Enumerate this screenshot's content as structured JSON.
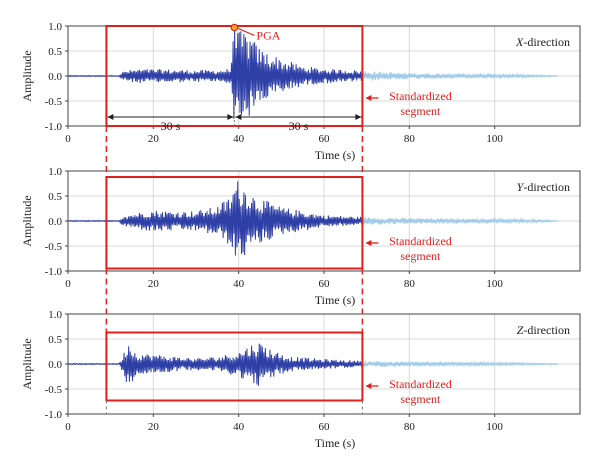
{
  "figure_annotations": {
    "pga_label": "PGA",
    "segment_label_line1": "Standardized",
    "segment_label_line2": "segment",
    "left_span_label": "30 s",
    "right_span_label": "30 s",
    "segment_start_s": 9,
    "pga_time_s": 39,
    "segment_end_s": 69,
    "colors": {
      "signal_in_segment": "#2e3fa6",
      "signal_outside": "#9fcbe8",
      "annotation_red": "#e0201a",
      "grid": "#d9d9d9",
      "pga_marker_fill": "#f4a623"
    }
  },
  "chart_data": [
    {
      "type": "line",
      "direction_label_italic": "X",
      "direction_label_rest": "-direction",
      "xlabel": "Time (s)",
      "ylabel": "Amplitude",
      "xlim": [
        0,
        120
      ],
      "ylim": [
        -1.0,
        1.0
      ],
      "xticks": [
        0,
        20,
        40,
        60,
        80,
        100
      ],
      "yticks": [
        -1.0,
        -0.5,
        0.0,
        0.5,
        1.0
      ],
      "grid": true,
      "pga": {
        "t": 39,
        "value": 0.97
      },
      "envelope": [
        [
          0,
          0.01
        ],
        [
          12,
          0.01
        ],
        [
          13,
          0.1
        ],
        [
          16,
          0.14
        ],
        [
          20,
          0.14
        ],
        [
          25,
          0.13
        ],
        [
          30,
          0.12
        ],
        [
          35,
          0.12
        ],
        [
          38,
          0.15
        ],
        [
          39,
          0.97
        ],
        [
          40,
          0.9
        ],
        [
          42,
          0.9
        ],
        [
          45,
          0.55
        ],
        [
          50,
          0.35
        ],
        [
          55,
          0.2
        ],
        [
          60,
          0.15
        ],
        [
          65,
          0.13
        ],
        [
          70,
          0.1
        ],
        [
          80,
          0.06
        ],
        [
          90,
          0.05
        ],
        [
          100,
          0.04
        ],
        [
          110,
          0.02
        ],
        [
          115,
          0.01
        ]
      ],
      "segment_box": {
        "t_start": 9,
        "t_end": 69,
        "y_min": -1.0,
        "y_max": 1.0
      }
    },
    {
      "type": "line",
      "direction_label_italic": "Y",
      "direction_label_rest": "-direction",
      "xlabel": "Time (s)",
      "ylabel": "Amplitude",
      "xlim": [
        0,
        120
      ],
      "ylim": [
        -1.0,
        1.0
      ],
      "xticks": [
        0,
        20,
        40,
        60,
        80,
        100
      ],
      "yticks": [
        -1.0,
        -0.5,
        0.0,
        0.5,
        1.0
      ],
      "grid": true,
      "envelope": [
        [
          0,
          0.01
        ],
        [
          12,
          0.01
        ],
        [
          13,
          0.12
        ],
        [
          15,
          0.15
        ],
        [
          20,
          0.22
        ],
        [
          25,
          0.2
        ],
        [
          30,
          0.2
        ],
        [
          35,
          0.3
        ],
        [
          38,
          0.5
        ],
        [
          39.5,
          0.85
        ],
        [
          41,
          0.75
        ],
        [
          44,
          0.5
        ],
        [
          50,
          0.28
        ],
        [
          55,
          0.2
        ],
        [
          60,
          0.12
        ],
        [
          65,
          0.1
        ],
        [
          70,
          0.08
        ],
        [
          80,
          0.06
        ],
        [
          90,
          0.05
        ],
        [
          100,
          0.04
        ],
        [
          110,
          0.03
        ],
        [
          115,
          0.01
        ]
      ],
      "segment_box": {
        "t_start": 9,
        "t_end": 69,
        "y_min": -0.95,
        "y_max": 0.88
      }
    },
    {
      "type": "line",
      "direction_label_italic": "Z",
      "direction_label_rest": "-direction",
      "xlabel": "Time (s)",
      "ylabel": "Amplitude",
      "xlim": [
        0,
        120
      ],
      "ylim": [
        -1.0,
        1.0
      ],
      "xticks": [
        0,
        20,
        40,
        60,
        80,
        100
      ],
      "yticks": [
        -1.0,
        -0.5,
        0.0,
        0.5,
        1.0
      ],
      "grid": true,
      "envelope": [
        [
          0,
          0.01
        ],
        [
          12,
          0.01
        ],
        [
          13,
          0.2
        ],
        [
          14,
          0.5
        ],
        [
          16,
          0.22
        ],
        [
          20,
          0.2
        ],
        [
          25,
          0.15
        ],
        [
          30,
          0.12
        ],
        [
          35,
          0.15
        ],
        [
          40,
          0.25
        ],
        [
          43,
          0.4
        ],
        [
          45,
          0.45
        ],
        [
          48,
          0.28
        ],
        [
          52,
          0.15
        ],
        [
          60,
          0.1
        ],
        [
          65,
          0.08
        ],
        [
          70,
          0.06
        ],
        [
          80,
          0.05
        ],
        [
          90,
          0.04
        ],
        [
          100,
          0.03
        ],
        [
          110,
          0.02
        ],
        [
          115,
          0.01
        ]
      ],
      "segment_box": {
        "t_start": 9,
        "t_end": 69,
        "y_min": -0.73,
        "y_max": 0.63
      }
    }
  ]
}
